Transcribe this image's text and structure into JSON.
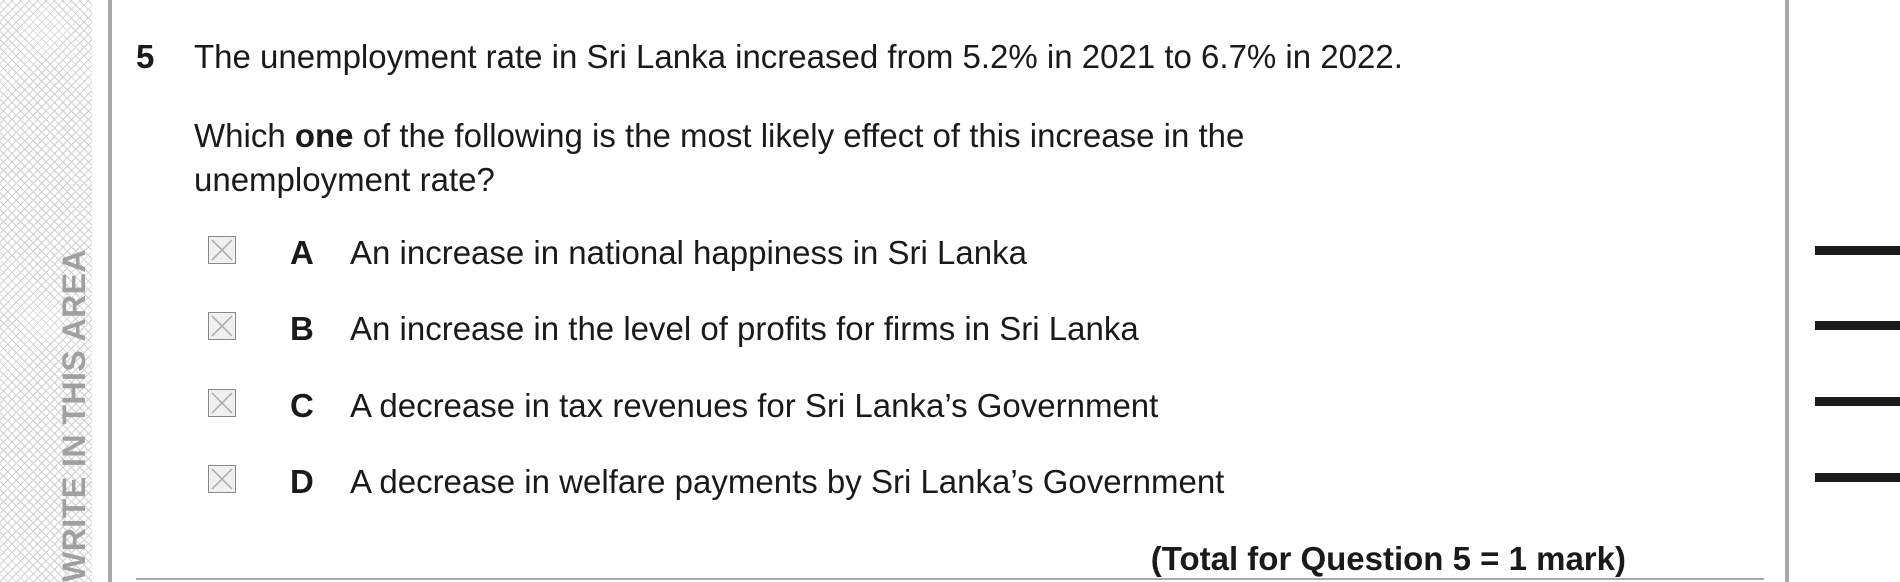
{
  "sidebar": {
    "text": "WRITE IN THIS AREA"
  },
  "question": {
    "number": "5",
    "stem": "The unemployment rate in Sri Lanka increased from 5.2% in 2021 to 6.7% in 2022.",
    "prompt_parts": [
      "Which ",
      "one",
      " of the following is the most likely effect of this increase in the",
      "unemployment rate?"
    ],
    "options": [
      {
        "letter": "A",
        "text": "An increase in national happiness in Sri Lanka"
      },
      {
        "letter": "B",
        "text": "An increase in the level of profits for firms in Sri Lanka"
      },
      {
        "letter": "C",
        "text": "A decrease in tax revenues for Sri Lanka’s Government"
      },
      {
        "letter": "D",
        "text": "A decrease in welfare payments by Sri Lanka’s Government"
      }
    ],
    "total": "(Total for Question 5 = 1 mark)"
  }
}
